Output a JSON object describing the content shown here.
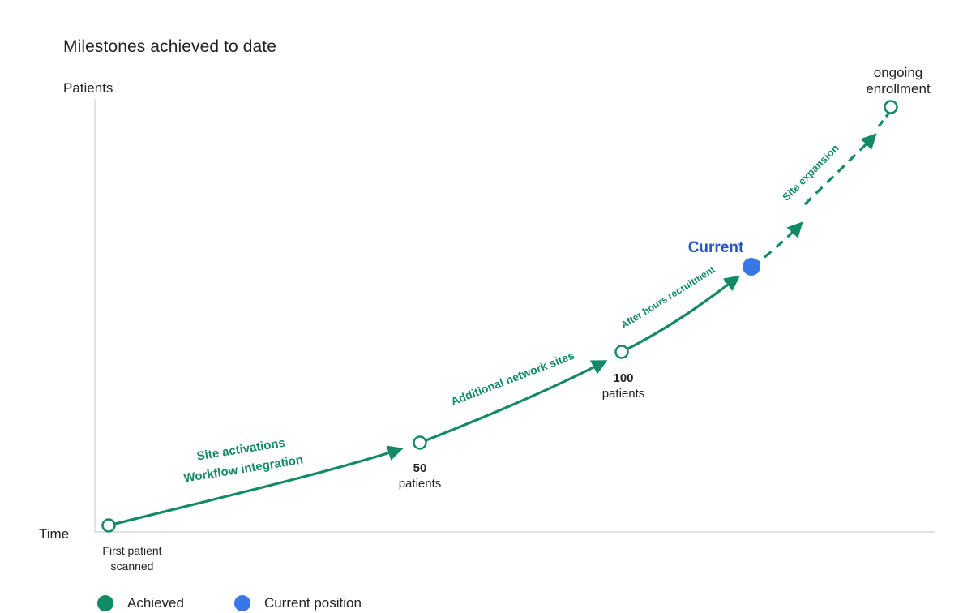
{
  "title": "Milestones achieved to date",
  "axes": {
    "y_label": "Patients",
    "x_label": "Time"
  },
  "milestones": {
    "start_line1": "First patient",
    "start_line2": "scanned",
    "m50_value": "50",
    "m50_unit": "patients",
    "m100_value": "100",
    "m100_unit": "patients",
    "current_label": "Current",
    "end_line1": "ongoing",
    "end_line2": "enrollment"
  },
  "phases": {
    "phase1_line1": "Site activations",
    "phase1_line2": "Workflow integration",
    "phase2": "Additional network sites",
    "phase3": "After hours recruitment",
    "phase4": "Site expansion"
  },
  "legend": {
    "achieved": "Achieved",
    "current": "Current position"
  },
  "colors": {
    "achieved": "#138a67",
    "current": "#3b76e6",
    "current_text": "#2456c4",
    "axis": "#cfcfcf",
    "text": "#222222"
  }
}
